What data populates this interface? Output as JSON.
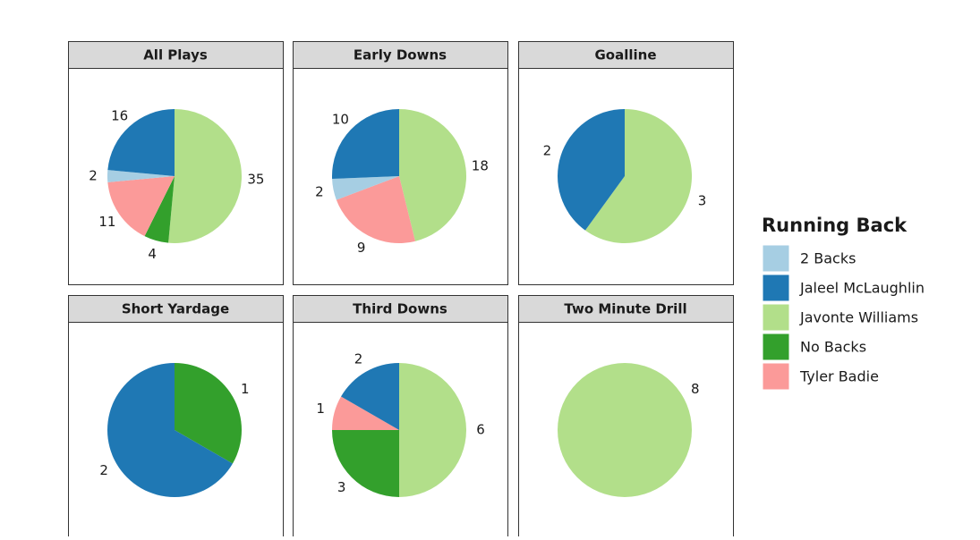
{
  "chart_data": [
    {
      "type": "pie",
      "title": "All Plays",
      "categories": [
        "Javonte Williams",
        "No Backs",
        "Tyler Badie",
        "2 Backs",
        "Jaleel McLaughlin"
      ],
      "values": [
        35,
        4,
        11,
        2,
        16
      ]
    },
    {
      "type": "pie",
      "title": "Early Downs",
      "categories": [
        "Javonte Williams",
        "Tyler Badie",
        "2 Backs",
        "Jaleel McLaughlin"
      ],
      "values": [
        18,
        9,
        2,
        10
      ]
    },
    {
      "type": "pie",
      "title": "Goalline",
      "categories": [
        "Javonte Williams",
        "Jaleel McLaughlin"
      ],
      "values": [
        3,
        2
      ]
    },
    {
      "type": "pie",
      "title": "Short Yardage",
      "categories": [
        "No Backs",
        "Jaleel McLaughlin"
      ],
      "values": [
        1,
        2
      ]
    },
    {
      "type": "pie",
      "title": "Third Downs",
      "categories": [
        "Javonte Williams",
        "No Backs",
        "Tyler Badie",
        "Jaleel McLaughlin"
      ],
      "values": [
        6,
        3,
        1,
        2
      ]
    },
    {
      "type": "pie",
      "title": "Two Minute Drill",
      "categories": [
        "Javonte Williams"
      ],
      "values": [
        8
      ]
    }
  ],
  "legend": {
    "title": "Running Back",
    "entries": [
      {
        "name": "2 Backs",
        "color": "#a6cee3"
      },
      {
        "name": "Jaleel McLaughlin",
        "color": "#1f78b4"
      },
      {
        "name": "Javonte Williams",
        "color": "#b2df8a"
      },
      {
        "name": "No Backs",
        "color": "#33a02c"
      },
      {
        "name": "Tyler Badie",
        "color": "#fb9a99"
      }
    ]
  }
}
